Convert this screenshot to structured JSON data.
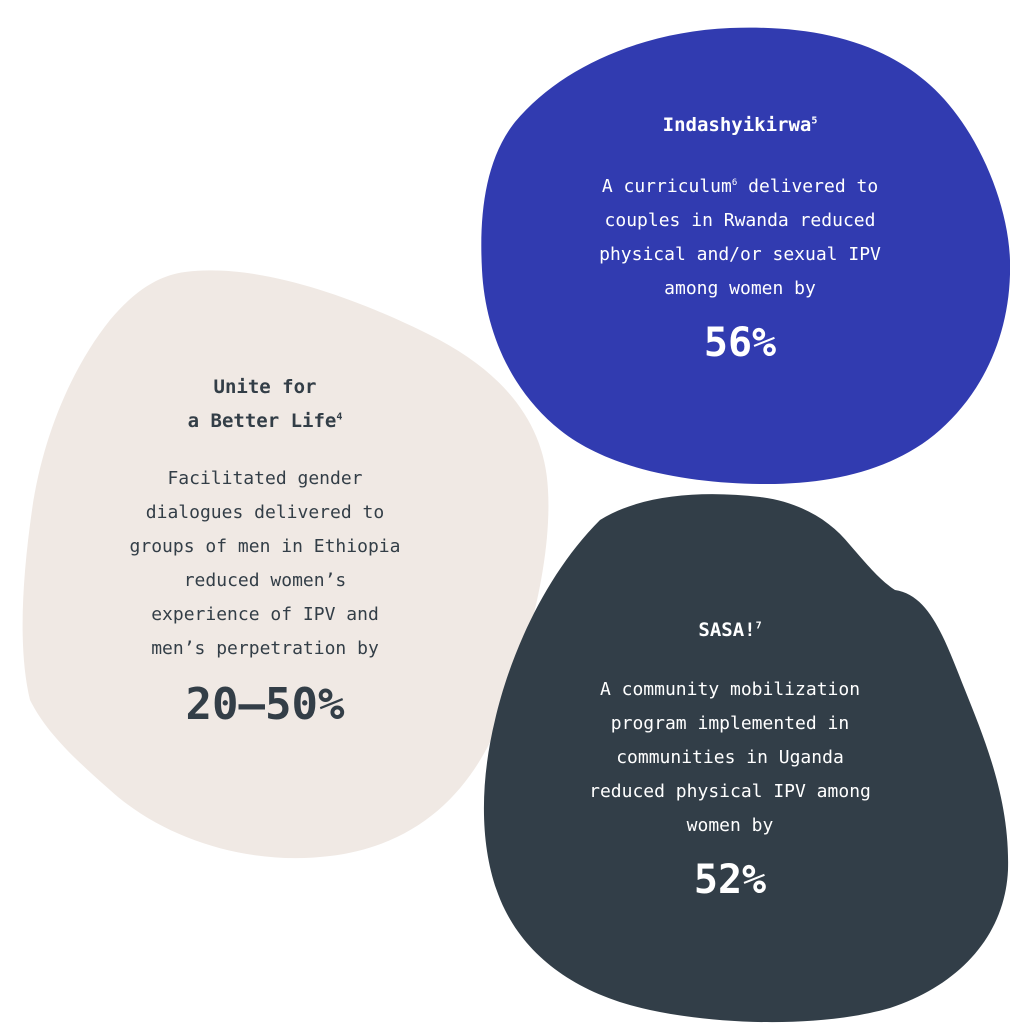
{
  "colors": {
    "unite_blob": "#f0e9e4",
    "inda_blob": "#313bb0",
    "sasa_blob": "#323e48",
    "dark_text": "#333e47",
    "light_text": "#ffffff"
  },
  "cards": {
    "unite": {
      "title_line1": "Unite for",
      "title_line2": "a Better Life",
      "title_ref": "4",
      "body": "Facilitated gender\ndialogues delivered to\ngroups of men in Ethiopia\nreduced women’s\nexperience of IPV and\nmen’s perpetration by",
      "stat": "20–50%"
    },
    "indashyikirwa": {
      "title": "Indashyikirwa",
      "title_ref": "5",
      "body_pre": "A curriculum",
      "body_ref": "6",
      "body_post": " delivered to\ncouples in Rwanda reduced\nphysical and/or sexual IPV\namong women by",
      "stat": "56%"
    },
    "sasa": {
      "title": "SASA!",
      "title_ref": "7",
      "body": "A community mobilization\nprogram implemented in\ncommunities in Uganda\nreduced physical IPV among\nwomen by",
      "stat": "52%"
    }
  }
}
